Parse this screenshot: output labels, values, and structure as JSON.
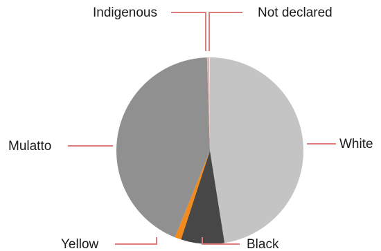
{
  "chart_data": {
    "type": "pie",
    "title": "",
    "categories": [
      "White",
      "Black",
      "Yellow",
      "Mulatto",
      "Indigenous",
      "Not declared"
    ],
    "values": [
      47.5,
      7.5,
      1.1,
      43.4,
      0.4,
      0.1
    ],
    "unit": "%",
    "colors": {
      "White": "#c4c4c4",
      "Black": "#474747",
      "Yellow": "#f28a1c",
      "Mulatto": "#909090",
      "Indigenous": "#e1b0ad",
      "Not declared": "#ececec"
    },
    "start_angle_deg": 0,
    "direction": "clockwise",
    "legend": "none",
    "labels": [
      "Indigenous",
      "Not declared",
      "White",
      "Black",
      "Yellow",
      "Mulatto"
    ]
  }
}
